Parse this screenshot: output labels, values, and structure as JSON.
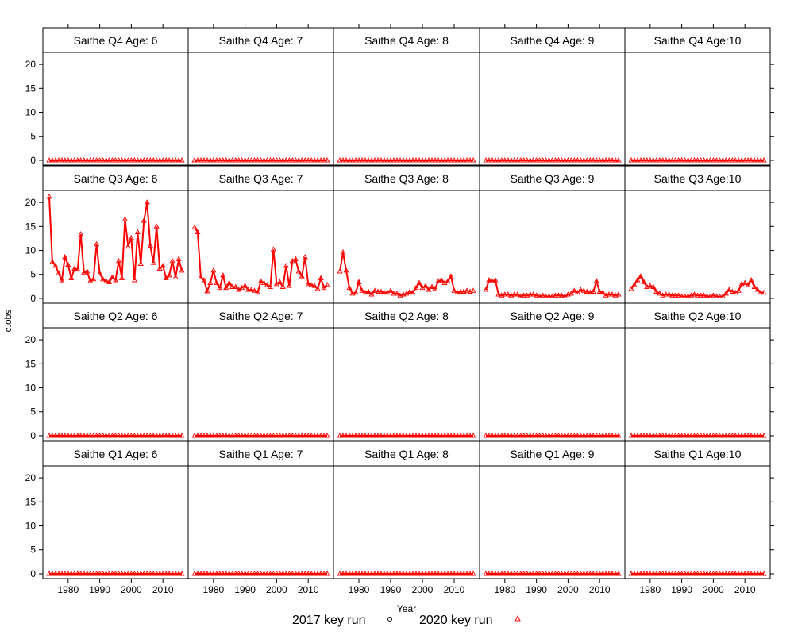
{
  "chart_data": {
    "type": "line",
    "layout": "lattice 5 columns x 4 rows",
    "xlabel": "Year",
    "ylabel": "c.obs",
    "xlim": [
      1972,
      2018
    ],
    "ylim": [
      -1,
      22.5
    ],
    "x_ticks": [
      1980,
      1990,
      2000,
      2010
    ],
    "y_ticks": [
      0,
      5,
      10,
      15,
      20
    ],
    "grid": false,
    "legend_position": "bottom",
    "legend": [
      {
        "name": "2017 key run",
        "marker": "circle",
        "color": "#000000"
      },
      {
        "name": "2020 key run",
        "marker": "triangle",
        "color": "#ff0000"
      }
    ],
    "years": [
      1974,
      1975,
      1976,
      1977,
      1978,
      1979,
      1980,
      1981,
      1982,
      1983,
      1984,
      1985,
      1986,
      1987,
      1988,
      1989,
      1990,
      1991,
      1992,
      1993,
      1994,
      1995,
      1996,
      1997,
      1998,
      1999,
      2000,
      2001,
      2002,
      2003,
      2004,
      2005,
      2006,
      2007,
      2008,
      2009,
      2010,
      2011,
      2012,
      2013,
      2014,
      2015,
      2016
    ],
    "panels": [
      {
        "title": "Saithe Q4 Age: 6",
        "values": [
          0,
          0,
          0,
          0,
          0,
          0,
          0,
          0,
          0,
          0,
          0,
          0,
          0,
          0,
          0,
          0,
          0,
          0,
          0,
          0,
          0,
          0,
          0,
          0,
          0,
          0,
          0,
          0,
          0,
          0,
          0,
          0,
          0,
          0,
          0,
          0,
          0,
          0,
          0,
          0,
          0,
          0,
          0
        ]
      },
      {
        "title": "Saithe Q4 Age: 7",
        "values": [
          0,
          0,
          0,
          0,
          0,
          0,
          0,
          0,
          0,
          0,
          0,
          0,
          0,
          0,
          0,
          0,
          0,
          0,
          0,
          0,
          0,
          0,
          0,
          0,
          0,
          0,
          0,
          0,
          0,
          0,
          0,
          0,
          0,
          0,
          0,
          0,
          0,
          0,
          0,
          0,
          0,
          0,
          0
        ]
      },
      {
        "title": "Saithe Q4 Age: 8",
        "values": [
          0,
          0,
          0,
          0,
          0,
          0,
          0,
          0,
          0,
          0,
          0,
          0,
          0,
          0,
          0,
          0,
          0,
          0,
          0,
          0,
          0,
          0,
          0,
          0,
          0,
          0,
          0,
          0,
          0,
          0,
          0,
          0,
          0,
          0,
          0,
          0,
          0,
          0,
          0,
          0,
          0,
          0,
          0
        ]
      },
      {
        "title": "Saithe Q4 Age: 9",
        "values": [
          0,
          0,
          0,
          0,
          0,
          0,
          0,
          0,
          0,
          0,
          0,
          0,
          0,
          0,
          0,
          0,
          0,
          0,
          0,
          0,
          0,
          0,
          0,
          0,
          0,
          0,
          0,
          0,
          0,
          0,
          0,
          0,
          0,
          0,
          0,
          0,
          0,
          0,
          0,
          0,
          0,
          0,
          0
        ]
      },
      {
        "title": "Saithe Q4 Age:10",
        "values": [
          0,
          0,
          0,
          0,
          0,
          0,
          0,
          0,
          0,
          0,
          0,
          0,
          0,
          0,
          0,
          0,
          0,
          0,
          0,
          0,
          0,
          0,
          0,
          0,
          0,
          0,
          0,
          0,
          0,
          0,
          0,
          0,
          0,
          0,
          0,
          0,
          0,
          0,
          0,
          0,
          0,
          0,
          0
        ]
      },
      {
        "title": "Saithe Q3 Age: 6",
        "values": [
          21.2,
          7.6,
          6.8,
          5.2,
          3.8,
          8.6,
          7.0,
          4.2,
          6.2,
          6.0,
          13.4,
          5.4,
          5.6,
          3.6,
          4.0,
          11.3,
          5.2,
          4.0,
          3.6,
          3.4,
          4.4,
          3.8,
          7.8,
          4.2,
          16.5,
          10.8,
          12.6,
          3.8,
          13.8,
          7.2,
          16.2,
          20.0,
          11.0,
          7.4,
          15.0,
          6.2,
          6.8,
          4.2,
          4.8,
          7.8,
          4.4,
          8.2,
          5.8
        ]
      },
      {
        "title": "Saithe Q3 Age: 7",
        "values": [
          14.8,
          13.8,
          4.4,
          3.8,
          1.5,
          3.2,
          5.8,
          3.2,
          2.2,
          4.8,
          2.2,
          3.2,
          2.4,
          2.4,
          1.8,
          2.2,
          2.6,
          1.8,
          1.8,
          1.6,
          1.2,
          3.6,
          3.2,
          2.8,
          2.4,
          10.2,
          3.0,
          3.4,
          2.4,
          6.8,
          2.6,
          7.8,
          8.2,
          5.6,
          4.6,
          8.6,
          3.0,
          2.8,
          2.6,
          2.0,
          4.2,
          2.2,
          2.8
        ]
      },
      {
        "title": "Saithe Q3 Age: 8",
        "values": [
          5.6,
          9.6,
          5.8,
          2.2,
          1.0,
          1.2,
          3.4,
          1.6,
          1.2,
          1.4,
          0.8,
          1.6,
          1.4,
          1.4,
          1.2,
          1.2,
          1.6,
          1.0,
          1.0,
          0.6,
          0.8,
          1.0,
          1.4,
          1.2,
          2.2,
          3.2,
          2.2,
          2.6,
          1.8,
          2.4,
          2.0,
          3.6,
          3.8,
          3.2,
          3.6,
          4.6,
          1.6,
          1.2,
          1.4,
          1.4,
          1.6,
          1.4,
          1.6
        ]
      },
      {
        "title": "Saithe Q3 Age: 9",
        "values": [
          1.8,
          3.8,
          3.6,
          3.8,
          0.8,
          0.6,
          0.8,
          0.8,
          0.6,
          0.8,
          0.8,
          0.4,
          0.6,
          0.6,
          0.8,
          0.8,
          0.6,
          0.4,
          0.6,
          0.4,
          0.4,
          0.4,
          0.6,
          0.6,
          0.6,
          0.4,
          0.8,
          1.0,
          1.6,
          1.2,
          1.8,
          1.6,
          1.4,
          1.2,
          1.4,
          3.6,
          1.4,
          1.2,
          0.6,
          0.8,
          0.8,
          0.6,
          0.8
        ]
      },
      {
        "title": "Saithe Q3 Age:10",
        "values": [
          2.0,
          2.8,
          3.8,
          4.6,
          3.4,
          2.4,
          2.6,
          2.4,
          1.4,
          1.0,
          0.6,
          0.8,
          0.8,
          0.6,
          0.6,
          0.6,
          0.4,
          0.4,
          0.4,
          0.6,
          0.8,
          0.6,
          0.6,
          0.6,
          0.4,
          0.4,
          0.6,
          0.4,
          0.4,
          0.4,
          1.0,
          1.8,
          1.4,
          1.2,
          1.6,
          3.0,
          3.2,
          2.8,
          3.8,
          2.4,
          1.8,
          1.2,
          1.2
        ]
      },
      {
        "title": "Saithe Q2 Age: 6",
        "values": [
          0,
          0,
          0,
          0,
          0,
          0,
          0,
          0,
          0,
          0,
          0,
          0,
          0,
          0,
          0,
          0,
          0,
          0,
          0,
          0,
          0,
          0,
          0,
          0,
          0,
          0,
          0,
          0,
          0,
          0,
          0,
          0,
          0,
          0,
          0,
          0,
          0,
          0,
          0,
          0,
          0,
          0,
          0
        ]
      },
      {
        "title": "Saithe Q2 Age: 7",
        "values": [
          0,
          0,
          0,
          0,
          0,
          0,
          0,
          0,
          0,
          0,
          0,
          0,
          0,
          0,
          0,
          0,
          0,
          0,
          0,
          0,
          0,
          0,
          0,
          0,
          0,
          0,
          0,
          0,
          0,
          0,
          0,
          0,
          0,
          0,
          0,
          0,
          0,
          0,
          0,
          0,
          0,
          0,
          0
        ]
      },
      {
        "title": "Saithe Q2 Age: 8",
        "values": [
          0,
          0,
          0,
          0,
          0,
          0,
          0,
          0,
          0,
          0,
          0,
          0,
          0,
          0,
          0,
          0,
          0,
          0,
          0,
          0,
          0,
          0,
          0,
          0,
          0,
          0,
          0,
          0,
          0,
          0,
          0,
          0,
          0,
          0,
          0,
          0,
          0,
          0,
          0,
          0,
          0,
          0,
          0
        ]
      },
      {
        "title": "Saithe Q2 Age: 9",
        "values": [
          0,
          0,
          0,
          0,
          0,
          0,
          0,
          0,
          0,
          0,
          0,
          0,
          0,
          0,
          0,
          0,
          0,
          0,
          0,
          0,
          0,
          0,
          0,
          0,
          0,
          0,
          0,
          0,
          0,
          0,
          0,
          0,
          0,
          0,
          0,
          0,
          0,
          0,
          0,
          0,
          0,
          0,
          0
        ]
      },
      {
        "title": "Saithe Q2 Age:10",
        "values": [
          0,
          0,
          0,
          0,
          0,
          0,
          0,
          0,
          0,
          0,
          0,
          0,
          0,
          0,
          0,
          0,
          0,
          0,
          0,
          0,
          0,
          0,
          0,
          0,
          0,
          0,
          0,
          0,
          0,
          0,
          0,
          0,
          0,
          0,
          0,
          0,
          0,
          0,
          0,
          0,
          0,
          0,
          0
        ]
      },
      {
        "title": "Saithe Q1 Age: 6",
        "values": [
          0,
          0,
          0,
          0,
          0,
          0,
          0,
          0,
          0,
          0,
          0,
          0,
          0,
          0,
          0,
          0,
          0,
          0,
          0,
          0,
          0,
          0,
          0,
          0,
          0,
          0,
          0,
          0,
          0,
          0,
          0,
          0,
          0,
          0,
          0,
          0,
          0,
          0,
          0,
          0,
          0,
          0,
          0
        ]
      },
      {
        "title": "Saithe Q1 Age: 7",
        "values": [
          0,
          0,
          0,
          0,
          0,
          0,
          0,
          0,
          0,
          0,
          0,
          0,
          0,
          0,
          0,
          0,
          0,
          0,
          0,
          0,
          0,
          0,
          0,
          0,
          0,
          0,
          0,
          0,
          0,
          0,
          0,
          0,
          0,
          0,
          0,
          0,
          0,
          0,
          0,
          0,
          0,
          0,
          0
        ]
      },
      {
        "title": "Saithe Q1 Age: 8",
        "values": [
          0,
          0,
          0,
          0,
          0,
          0,
          0,
          0,
          0,
          0,
          0,
          0,
          0,
          0,
          0,
          0,
          0,
          0,
          0,
          0,
          0,
          0,
          0,
          0,
          0,
          0,
          0,
          0,
          0,
          0,
          0,
          0,
          0,
          0,
          0,
          0,
          0,
          0,
          0,
          0,
          0,
          0,
          0
        ]
      },
      {
        "title": "Saithe Q1 Age: 9",
        "values": [
          0,
          0,
          0,
          0,
          0,
          0,
          0,
          0,
          0,
          0,
          0,
          0,
          0,
          0,
          0,
          0,
          0,
          0,
          0,
          0,
          0,
          0,
          0,
          0,
          0,
          0,
          0,
          0,
          0,
          0,
          0,
          0,
          0,
          0,
          0,
          0,
          0,
          0,
          0,
          0,
          0,
          0,
          0
        ]
      },
      {
        "title": "Saithe Q1 Age:10",
        "values": [
          0,
          0,
          0,
          0,
          0,
          0,
          0,
          0,
          0,
          0,
          0,
          0,
          0,
          0,
          0,
          0,
          0,
          0,
          0,
          0,
          0,
          0,
          0,
          0,
          0,
          0,
          0,
          0,
          0,
          0,
          0,
          0,
          0,
          0,
          0,
          0,
          0,
          0,
          0,
          0,
          0,
          0,
          0
        ]
      }
    ]
  }
}
